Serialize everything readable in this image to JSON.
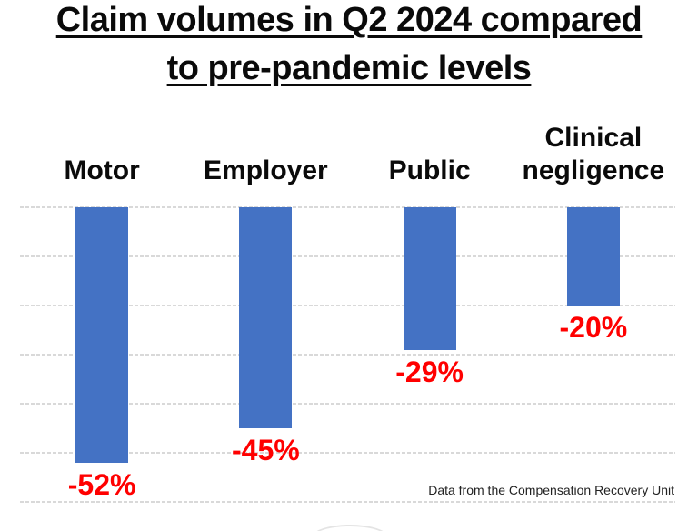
{
  "page": {
    "title_line1": "Claim volumes in Q2 2024 compared",
    "title_line2": "to pre-pandemic levels",
    "footnote": "Data from the Compensation Recovery Unit"
  },
  "chart_data": {
    "type": "bar",
    "title": "Claim volumes in Q2 2024 compared to pre-pandemic levels",
    "categories": [
      "Motor",
      "Employer",
      "Public",
      "Clinical negligence"
    ],
    "values": [
      -52,
      -45,
      -29,
      -20
    ],
    "data_labels": [
      "-52%",
      "-45%",
      "-29%",
      "-20%"
    ],
    "xlabel": "",
    "ylabel": "",
    "ylim": [
      -60,
      0
    ],
    "gridline_step": 10,
    "grid": true,
    "legend": false,
    "bar_color": "#4472C4",
    "data_label_color": "#ff0000",
    "gridline_color": "#d9d9d9",
    "source_note": "Data from the Compensation Recovery Unit"
  }
}
